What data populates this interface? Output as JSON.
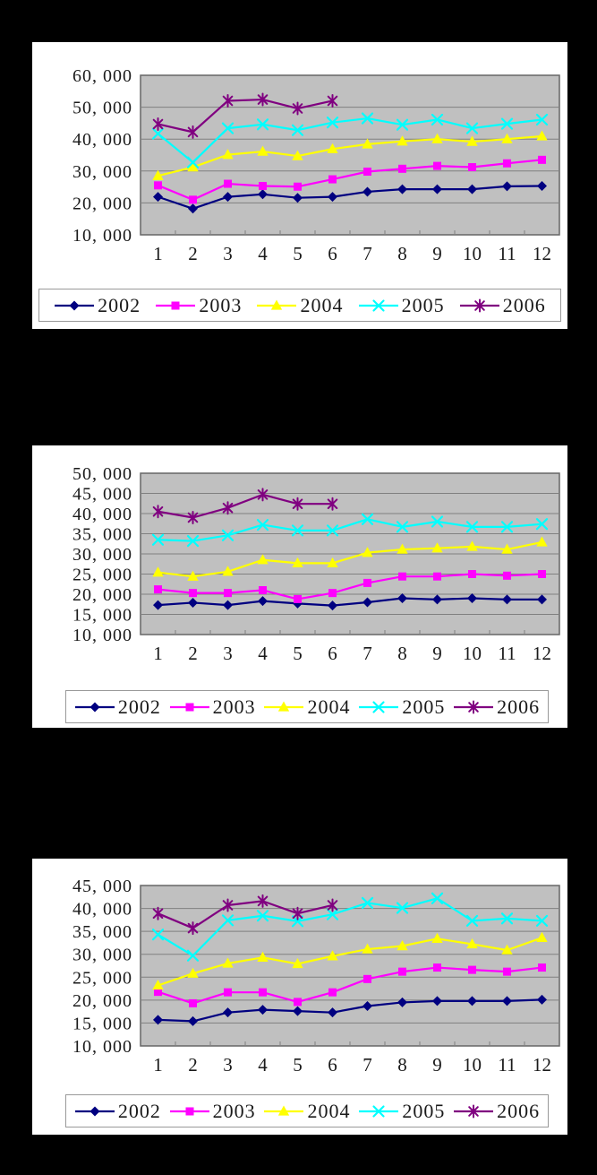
{
  "page": {
    "background_color": "#000000",
    "card_background_color": "#ffffff"
  },
  "colors": {
    "plot_background": "#c0c0c0",
    "gridline": "#808080",
    "plot_border": "#666666",
    "legend_border": "#999999",
    "series_2002": "#000080",
    "series_2003": "#ff00ff",
    "series_2004": "#ffff00",
    "series_2005": "#00ffff",
    "series_2006": "#800080"
  },
  "chart_data": [
    {
      "type": "line",
      "title": "",
      "xlabel": "",
      "ylabel": "",
      "grid": true,
      "legend_position": "bottom",
      "categories": [
        "1",
        "2",
        "3",
        "4",
        "5",
        "6",
        "7",
        "8",
        "9",
        "10",
        "11",
        "12"
      ],
      "ylim": [
        10000,
        60000
      ],
      "ystep": 10000,
      "y_tick_labels": [
        "60, 000",
        "50, 000",
        "40, 000",
        "30, 000",
        "20, 000",
        "10, 000"
      ],
      "series": [
        {
          "name": "2002",
          "color": "#000080",
          "marker": "diamond",
          "values": [
            21900,
            18200,
            21900,
            22700,
            21600,
            21900,
            23500,
            24300,
            24300,
            24300,
            25200,
            25300
          ]
        },
        {
          "name": "2003",
          "color": "#ff00ff",
          "marker": "square",
          "values": [
            25500,
            21000,
            26000,
            25300,
            25100,
            27400,
            29800,
            30700,
            31600,
            31200,
            32400,
            33500
          ]
        },
        {
          "name": "2004",
          "color": "#ffff00",
          "marker": "triangle",
          "values": [
            28500,
            31200,
            35100,
            36100,
            34700,
            36900,
            38400,
            39300,
            40000,
            39200,
            40000,
            40900
          ]
        },
        {
          "name": "2005",
          "color": "#00ffff",
          "marker": "x",
          "values": [
            41700,
            32700,
            43400,
            44600,
            42800,
            45200,
            46500,
            44500,
            46100,
            43400,
            44800,
            46100
          ]
        },
        {
          "name": "2006",
          "color": "#800080",
          "marker": "star",
          "values": [
            44700,
            42200,
            52000,
            52400,
            49600,
            52000,
            null,
            null,
            null,
            null,
            null,
            null
          ]
        }
      ]
    },
    {
      "type": "line",
      "title": "",
      "xlabel": "",
      "ylabel": "",
      "grid": true,
      "legend_position": "bottom",
      "categories": [
        "1",
        "2",
        "3",
        "4",
        "5",
        "6",
        "7",
        "8",
        "9",
        "10",
        "11",
        "12"
      ],
      "ylim": [
        10000,
        50000
      ],
      "ystep": 5000,
      "y_tick_labels": [
        "50, 000",
        "45, 000",
        "40, 000",
        "35, 000",
        "30, 000",
        "25, 000",
        "20, 000",
        "15, 000",
        "10, 000"
      ],
      "series": [
        {
          "name": "2002",
          "color": "#000080",
          "marker": "diamond",
          "values": [
            17300,
            17900,
            17300,
            18300,
            17700,
            17200,
            18000,
            19000,
            18700,
            19000,
            18700,
            18700
          ]
        },
        {
          "name": "2003",
          "color": "#ff00ff",
          "marker": "square",
          "values": [
            21200,
            20300,
            20300,
            21000,
            18800,
            20300,
            22800,
            24400,
            24400,
            25000,
            24600,
            25000
          ]
        },
        {
          "name": "2004",
          "color": "#ffff00",
          "marker": "triangle",
          "values": [
            25400,
            24400,
            25600,
            28500,
            27700,
            27700,
            30300,
            31100,
            31400,
            31800,
            31100,
            32900
          ]
        },
        {
          "name": "2005",
          "color": "#00ffff",
          "marker": "x",
          "values": [
            33500,
            33200,
            34600,
            37200,
            35800,
            35800,
            38600,
            36700,
            38000,
            36700,
            36700,
            37400
          ]
        },
        {
          "name": "2006",
          "color": "#800080",
          "marker": "star",
          "values": [
            40500,
            39000,
            41400,
            44700,
            42400,
            42400,
            null,
            null,
            null,
            null,
            null,
            null
          ]
        }
      ]
    },
    {
      "type": "line",
      "title": "",
      "xlabel": "",
      "ylabel": "",
      "grid": true,
      "legend_position": "bottom",
      "categories": [
        "1",
        "2",
        "3",
        "4",
        "5",
        "6",
        "7",
        "8",
        "9",
        "10",
        "11",
        "12"
      ],
      "ylim": [
        10000,
        45000
      ],
      "ystep": 5000,
      "y_tick_labels": [
        "45, 000",
        "40, 000",
        "35, 000",
        "30, 000",
        "25, 000",
        "20, 000",
        "15, 000",
        "10, 000"
      ],
      "series": [
        {
          "name": "2002",
          "color": "#000080",
          "marker": "diamond",
          "values": [
            15700,
            15400,
            17300,
            17900,
            17600,
            17300,
            18700,
            19500,
            19800,
            19800,
            19800,
            20100
          ]
        },
        {
          "name": "2003",
          "color": "#ff00ff",
          "marker": "square",
          "values": [
            21800,
            19300,
            21700,
            21700,
            19600,
            21700,
            24600,
            26200,
            27100,
            26600,
            26200,
            27100
          ]
        },
        {
          "name": "2004",
          "color": "#ffff00",
          "marker": "triangle",
          "values": [
            23200,
            25800,
            28000,
            29300,
            27900,
            29600,
            31100,
            31800,
            33400,
            32200,
            30900,
            33600
          ]
        },
        {
          "name": "2005",
          "color": "#00ffff",
          "marker": "x",
          "values": [
            34300,
            29700,
            37400,
            38400,
            37200,
            38700,
            41200,
            40100,
            42200,
            37300,
            37800,
            37300
          ]
        },
        {
          "name": "2006",
          "color": "#800080",
          "marker": "star",
          "values": [
            38900,
            35700,
            40700,
            41600,
            38900,
            40700,
            null,
            null,
            null,
            null,
            null,
            null
          ]
        }
      ]
    }
  ]
}
